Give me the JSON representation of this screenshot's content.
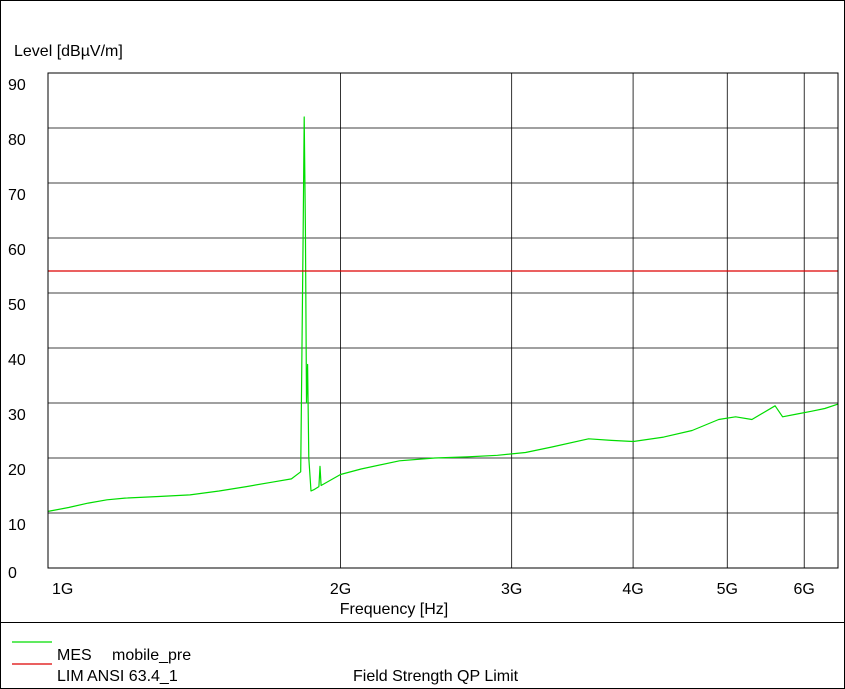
{
  "chart_data": {
    "type": "line",
    "title": "",
    "xlabel": "Frequency [Hz]",
    "ylabel": "Level [dBµV/m]",
    "xscale": "log",
    "xlim": [
      1000000000,
      6500000000
    ],
    "ylim": [
      0,
      90
    ],
    "grid": true,
    "x_ticks": [
      {
        "label": "1G",
        "value": 1000000000
      },
      {
        "label": "2G",
        "value": 2000000000
      },
      {
        "label": "3G",
        "value": 3000000000
      },
      {
        "label": "4G",
        "value": 4000000000
      },
      {
        "label": "5G",
        "value": 5000000000
      },
      {
        "label": "6G",
        "value": 6000000000
      }
    ],
    "y_ticks": [
      {
        "label": "0",
        "value": 0
      },
      {
        "label": "10",
        "value": 10
      },
      {
        "label": "20",
        "value": 20
      },
      {
        "label": "30",
        "value": 30
      },
      {
        "label": "40",
        "value": 40
      },
      {
        "label": "50",
        "value": 50
      },
      {
        "label": "60",
        "value": 60
      },
      {
        "label": "70",
        "value": 70
      },
      {
        "label": "80",
        "value": 80
      },
      {
        "label": "90",
        "value": 90
      }
    ],
    "series": [
      {
        "name": "mobile_pre",
        "color": "#00dd00",
        "points": [
          [
            1000000000,
            10.3
          ],
          [
            1050000000,
            11.0
          ],
          [
            1100000000,
            11.8
          ],
          [
            1150000000,
            12.4
          ],
          [
            1200000000,
            12.7
          ],
          [
            1300000000,
            13.0
          ],
          [
            1400000000,
            13.3
          ],
          [
            1500000000,
            14.0
          ],
          [
            1600000000,
            14.8
          ],
          [
            1700000000,
            15.6
          ],
          [
            1780000000,
            16.2
          ],
          [
            1820000000,
            17.5
          ],
          [
            1830000000,
            60.0
          ],
          [
            1835000000,
            82.0
          ],
          [
            1840000000,
            62.0
          ],
          [
            1845000000,
            30.0
          ],
          [
            1850000000,
            37.0
          ],
          [
            1855000000,
            20.0
          ],
          [
            1865000000,
            14.0
          ],
          [
            1880000000,
            14.3
          ],
          [
            1900000000,
            14.8
          ],
          [
            1905000000,
            18.5
          ],
          [
            1910000000,
            15.0
          ],
          [
            2000000000,
            17.0
          ],
          [
            2100000000,
            18.0
          ],
          [
            2300000000,
            19.5
          ],
          [
            2500000000,
            20.0
          ],
          [
            2700000000,
            20.2
          ],
          [
            2900000000,
            20.5
          ],
          [
            3100000000,
            21.0
          ],
          [
            3300000000,
            22.0
          ],
          [
            3600000000,
            23.5
          ],
          [
            3800000000,
            23.2
          ],
          [
            4000000000,
            23.0
          ],
          [
            4300000000,
            23.8
          ],
          [
            4600000000,
            25.0
          ],
          [
            4900000000,
            27.0
          ],
          [
            5100000000,
            27.5
          ],
          [
            5300000000,
            27.0
          ],
          [
            5600000000,
            29.5
          ],
          [
            5700000000,
            27.5
          ],
          [
            5900000000,
            28.0
          ],
          [
            6100000000,
            28.5
          ],
          [
            6300000000,
            29.0
          ],
          [
            6500000000,
            29.8
          ]
        ]
      },
      {
        "name": "ANSI 63.4_1",
        "color": "#dd0000",
        "points": [
          [
            1000000000,
            54.0
          ],
          [
            6500000000,
            54.0
          ]
        ]
      }
    ],
    "legend": [
      {
        "code": "MES",
        "name": "mobile_pre",
        "description": "",
        "color": "#00dd00"
      },
      {
        "code": "LIM",
        "name": "ANSI 63.4_1",
        "description": "Field Strength QP Limit",
        "color": "#dd0000"
      }
    ]
  }
}
